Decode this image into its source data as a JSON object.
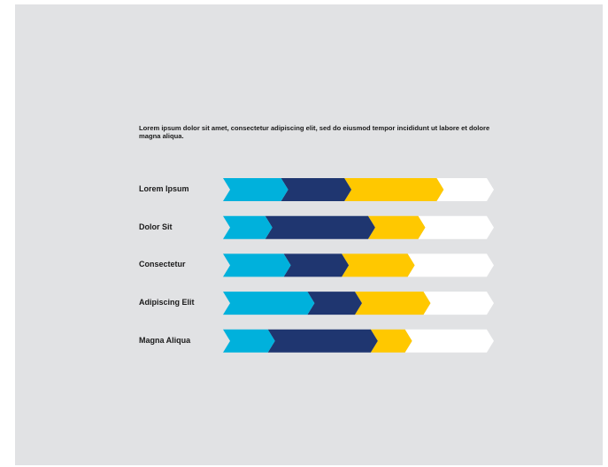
{
  "intro_text": "Lorem ipsum dolor sit amet, consectetur adipiscing elit, sed do eiusmod tempor incididunt ut labore et dolore magna aliqua.",
  "colors": {
    "background": "#e1e2e4",
    "cyan": "#00b1dc",
    "navy": "#1f3670",
    "yellow": "#ffc800",
    "white": "#ffffff"
  },
  "chart_data": {
    "type": "bar",
    "stacked": true,
    "orientation": "horizontal",
    "categories": [
      "Lorem Ipsum",
      "Dolor Sit",
      "Consectetur",
      "Adipiscing Elit",
      "Magna Aliqua"
    ],
    "total": 100,
    "series": [
      {
        "color": "#00b1dc",
        "values": [
          22,
          16,
          23,
          32,
          17
        ]
      },
      {
        "color": "#1f3670",
        "values": [
          24,
          39,
          22,
          18,
          39
        ]
      },
      {
        "color": "#ffc800",
        "values": [
          35,
          19,
          25,
          26,
          13
        ]
      },
      {
        "color": "#ffffff",
        "values": [
          19,
          26,
          30,
          24,
          31
        ]
      }
    ]
  }
}
